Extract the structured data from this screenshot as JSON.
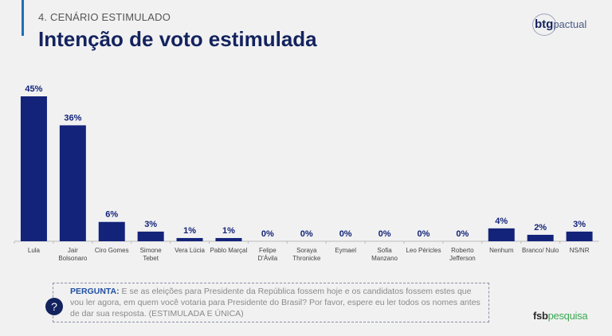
{
  "header": {
    "section": "4. CENÁRIO ESTIMULADO",
    "title": "Intenção de voto estimulada"
  },
  "brand": {
    "part1": "btg",
    "part2": "pactual"
  },
  "colors": {
    "bar": "#13237a",
    "title": "#13235f",
    "accent": "#1f6fb4"
  },
  "chart_data": {
    "type": "bar",
    "title": "Intenção de voto estimulada",
    "xlabel": "",
    "ylabel": "",
    "ylim": [
      0,
      45
    ],
    "grid": false,
    "categories": [
      "Lula",
      "Jair Bolsonaro",
      "Ciro Gomes",
      "Simone Tebet",
      "Vera Lúcia",
      "Pablo Marçal",
      "Felipe D'Ávila",
      "Soraya Thronicke",
      "Eymael",
      "Sofia Manzano",
      "Leo Péricles",
      "Roberto Jefferson",
      "Nenhum",
      "Branco/ Nulo",
      "NS/NR"
    ],
    "category_lines": [
      [
        "Lula"
      ],
      [
        "Jair",
        "Bolsonaro"
      ],
      [
        "Ciro Gomes"
      ],
      [
        "Simone",
        "Tebet"
      ],
      [
        "Vera Lúcia"
      ],
      [
        "Pablo Marçal"
      ],
      [
        "Felipe",
        "D'Ávila"
      ],
      [
        "Soraya",
        "Thronicke"
      ],
      [
        "Eymael"
      ],
      [
        "Sofia",
        "Manzano"
      ],
      [
        "Leo Péricles"
      ],
      [
        "Roberto",
        "Jefferson"
      ],
      [
        "Nenhum"
      ],
      [
        "Branco/ Nulo"
      ],
      [
        "NS/NR"
      ]
    ],
    "values": [
      45,
      36,
      6,
      3,
      1,
      1,
      0,
      0,
      0,
      0,
      0,
      0,
      4,
      2,
      3
    ],
    "labels": [
      "45%",
      "36%",
      "6%",
      "3%",
      "1%",
      "1%",
      "0%",
      "0%",
      "0%",
      "0%",
      "0%",
      "0%",
      "4%",
      "2%",
      "3%"
    ]
  },
  "question": {
    "label": "PERGUNTA:",
    "text": " E se as eleições para Presidente da República fossem hoje e os candidatos fossem estes que vou ler agora, em quem você votaria para Presidente do Brasil? Por favor, espere eu ler todos os nomes antes de dar sua resposta. (ESTIMULADA E ÚNICA)",
    "icon": "?"
  },
  "footer": {
    "part1": "fsb",
    "part2": "pesquisa"
  }
}
